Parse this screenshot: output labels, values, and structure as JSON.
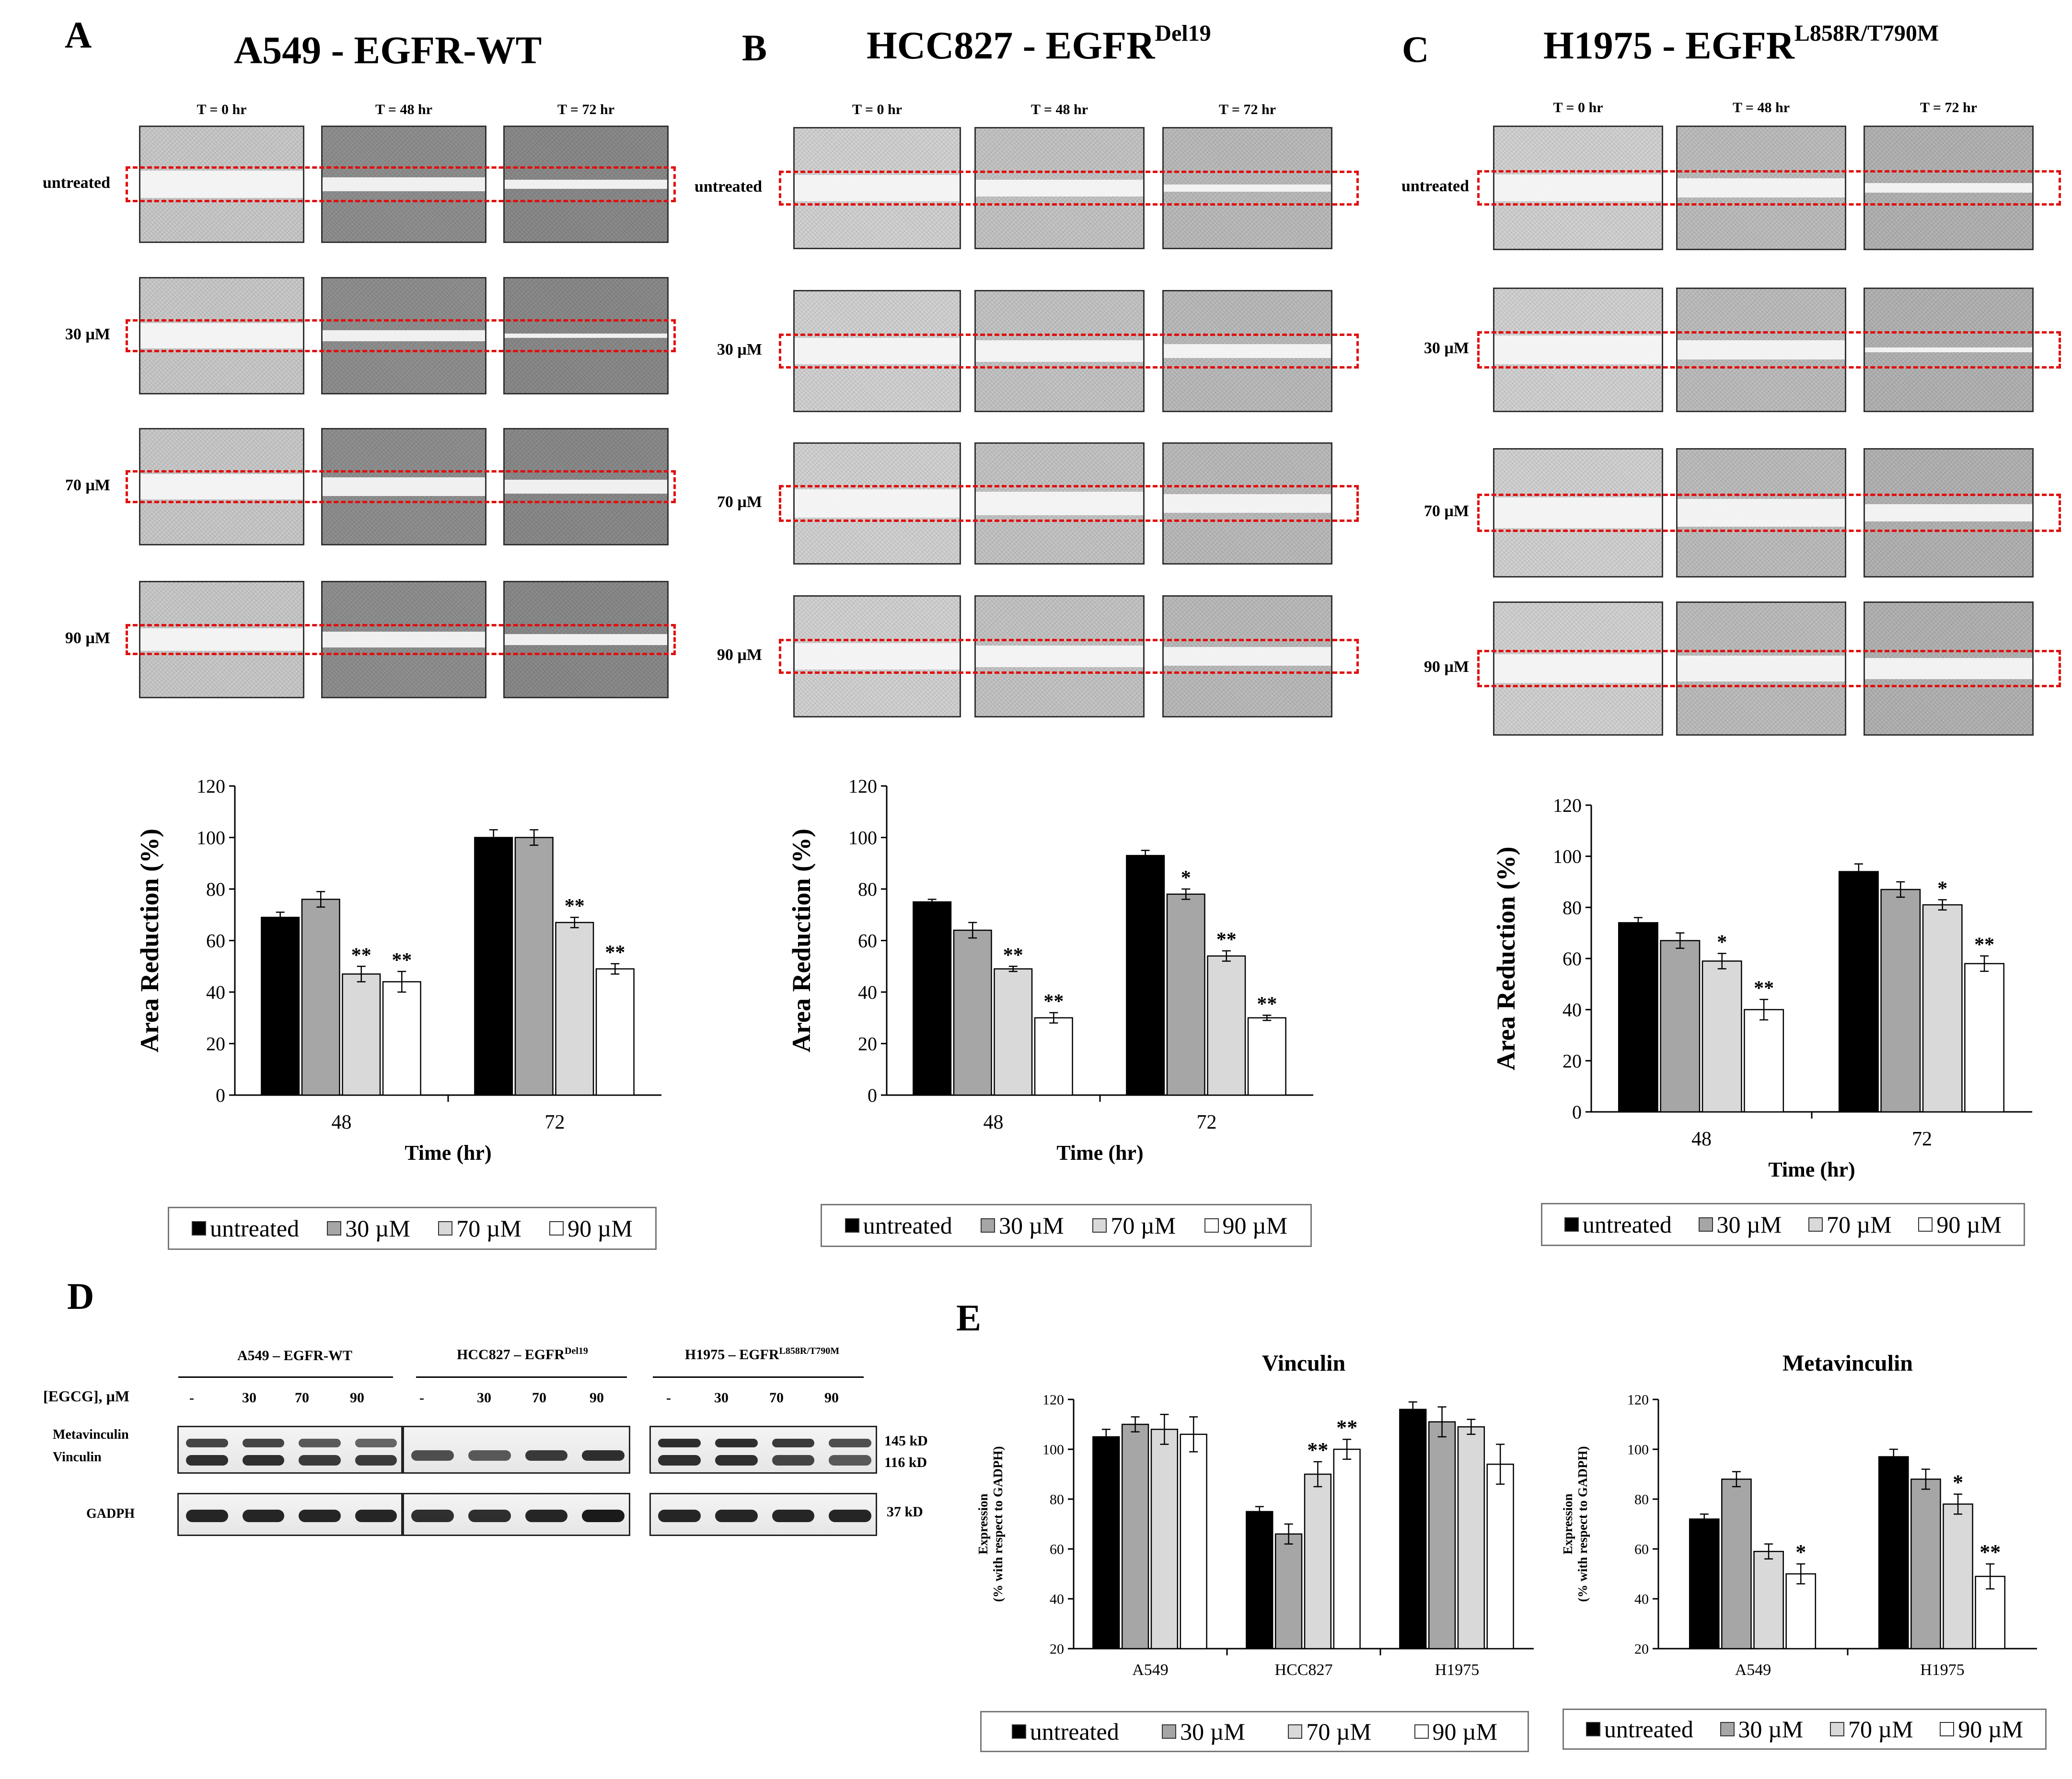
{
  "panels": [
    {
      "letter": "A",
      "title_main": "A549 - EGFR-WT",
      "title_sup": "",
      "time_labels": [
        "T = 0 hr",
        "T = 48 hr",
        "T = 72 hr"
      ],
      "row_labels": [
        "untreated",
        "30 µM",
        "70 µM",
        "90 µM"
      ]
    },
    {
      "letter": "B",
      "title_main": "HCC827 - EGFR",
      "title_sup": "Del19",
      "time_labels": [
        "T = 0 hr",
        "T = 48 hr",
        "T = 72 hr"
      ],
      "row_labels": [
        "untreated",
        "30 µM",
        "70 µM",
        "90 µM"
      ]
    },
    {
      "letter": "C",
      "title_main": "H1975 - EGFR",
      "title_sup": "L858R/T790M",
      "time_labels": [
        "T = 0 hr",
        "T = 48 hr",
        "T = 72 hr"
      ],
      "row_labels": [
        "untreated",
        "30 µM",
        "70 µM",
        "90 µM"
      ]
    }
  ],
  "legend_items": [
    "untreated",
    "30 µM",
    "70 µM",
    "90 µM"
  ],
  "chart_data": [
    {
      "id": "A",
      "type": "bar",
      "ylabel": "Area Reduction (%)",
      "xlabel": "Time (hr)",
      "ylim": [
        0,
        120
      ],
      "yticks": [
        0,
        20,
        40,
        60,
        80,
        100,
        120
      ],
      "categories": [
        "48",
        "72"
      ],
      "series": [
        {
          "name": "untreated",
          "values": [
            69,
            100
          ],
          "errors": [
            2,
            3
          ],
          "sig": [
            "",
            ""
          ]
        },
        {
          "name": "30 µM",
          "values": [
            76,
            100
          ],
          "errors": [
            3,
            3
          ],
          "sig": [
            "",
            ""
          ]
        },
        {
          "name": "70 µM",
          "values": [
            47,
            67
          ],
          "errors": [
            3,
            2
          ],
          "sig": [
            "**",
            "**"
          ]
        },
        {
          "name": "90 µM",
          "values": [
            44,
            49
          ],
          "errors": [
            4,
            2
          ],
          "sig": [
            "**",
            "**"
          ]
        }
      ]
    },
    {
      "id": "B",
      "type": "bar",
      "ylabel": "Area Reduction (%)",
      "xlabel": "Time (hr)",
      "ylim": [
        0,
        120
      ],
      "yticks": [
        0,
        20,
        40,
        60,
        80,
        100,
        120
      ],
      "categories": [
        "48",
        "72"
      ],
      "series": [
        {
          "name": "untreated",
          "values": [
            75,
            93
          ],
          "errors": [
            1,
            2
          ],
          "sig": [
            "",
            ""
          ]
        },
        {
          "name": "30 µM",
          "values": [
            64,
            78
          ],
          "errors": [
            3,
            2
          ],
          "sig": [
            "",
            "*"
          ]
        },
        {
          "name": "70 µM",
          "values": [
            49,
            54
          ],
          "errors": [
            1,
            2
          ],
          "sig": [
            "**",
            "**"
          ]
        },
        {
          "name": "90 µM",
          "values": [
            30,
            30
          ],
          "errors": [
            2,
            1
          ],
          "sig": [
            "**",
            "**"
          ]
        }
      ]
    },
    {
      "id": "C",
      "type": "bar",
      "ylabel": "Area Reduction (%)",
      "xlabel": "Time (hr)",
      "ylim": [
        0,
        120
      ],
      "yticks": [
        0,
        20,
        40,
        60,
        80,
        100,
        120
      ],
      "categories": [
        "48",
        "72"
      ],
      "series": [
        {
          "name": "untreated",
          "values": [
            74,
            94
          ],
          "errors": [
            2,
            3
          ],
          "sig": [
            "",
            ""
          ]
        },
        {
          "name": "30 µM",
          "values": [
            67,
            87
          ],
          "errors": [
            3,
            3
          ],
          "sig": [
            "",
            ""
          ]
        },
        {
          "name": "70 µM",
          "values": [
            59,
            81
          ],
          "errors": [
            3,
            2
          ],
          "sig": [
            "*",
            "*"
          ]
        },
        {
          "name": "90 µM",
          "values": [
            40,
            58
          ],
          "errors": [
            4,
            3
          ],
          "sig": [
            "**",
            "**"
          ]
        }
      ]
    },
    {
      "id": "E1",
      "type": "bar",
      "title": "Vinculin",
      "ylabel_line1": "Expression",
      "ylabel_line2": "(% with respect to GADPH)",
      "ylim": [
        20,
        120
      ],
      "yticks": [
        20,
        40,
        60,
        80,
        100,
        120
      ],
      "categories": [
        "A549",
        "HCC827",
        "H1975"
      ],
      "series": [
        {
          "name": "untreated",
          "values": [
            105,
            75,
            116
          ],
          "errors": [
            3,
            2,
            3
          ],
          "sig": [
            "",
            "",
            ""
          ]
        },
        {
          "name": "30 µM",
          "values": [
            110,
            66,
            111
          ],
          "errors": [
            3,
            4,
            6
          ],
          "sig": [
            "",
            "",
            ""
          ]
        },
        {
          "name": "70 µM",
          "values": [
            108,
            90,
            109
          ],
          "errors": [
            6,
            5,
            3
          ],
          "sig": [
            "",
            "**",
            ""
          ]
        },
        {
          "name": "90 µM",
          "values": [
            106,
            100,
            94
          ],
          "errors": [
            7,
            4,
            8
          ],
          "sig": [
            "",
            "**",
            ""
          ]
        }
      ]
    },
    {
      "id": "E2",
      "type": "bar",
      "title": "Metavinculin",
      "ylabel_line1": "Expression",
      "ylabel_line2": "(% with respect to GADPH)",
      "ylim": [
        20,
        120
      ],
      "yticks": [
        20,
        40,
        60,
        80,
        100,
        120
      ],
      "categories": [
        "A549",
        "H1975"
      ],
      "series": [
        {
          "name": "untreated",
          "values": [
            72,
            97
          ],
          "errors": [
            2,
            3
          ],
          "sig": [
            "",
            ""
          ]
        },
        {
          "name": "30 µM",
          "values": [
            88,
            88
          ],
          "errors": [
            3,
            4
          ],
          "sig": [
            "",
            ""
          ]
        },
        {
          "name": "70 µM",
          "values": [
            59,
            78
          ],
          "errors": [
            3,
            4
          ],
          "sig": [
            "",
            "*"
          ]
        },
        {
          "name": "90 µM",
          "values": [
            50,
            49
          ],
          "errors": [
            4,
            5
          ],
          "sig": [
            "*",
            "**"
          ]
        }
      ]
    }
  ],
  "western": {
    "letter": "D",
    "egcg_label": "[EGCG], µM",
    "groups": [
      {
        "title_main": "A549 – EGFR-WT",
        "title_sup": "",
        "doses": [
          "-",
          "30",
          "70",
          "90"
        ]
      },
      {
        "title_main": "HCC827 – EGFR",
        "title_sup": "Del19",
        "doses": [
          "-",
          "30",
          "70",
          "90"
        ]
      },
      {
        "title_main": "H1975 – EGFR",
        "title_sup": "L858R/T790M",
        "doses": [
          "-",
          "30",
          "70",
          "90"
        ]
      }
    ],
    "row_labels": [
      "Metavinculin",
      "Vinculin",
      "GADPH"
    ],
    "sizes": [
      "145 kD",
      "116 kD",
      "37 kD"
    ]
  },
  "panel_e_letter": "E",
  "colors": {
    "untreated": "#000000",
    "30": "#a6a6a6",
    "70": "#d9d9d9",
    "90": "#ffffff",
    "dash": "#e01010"
  }
}
